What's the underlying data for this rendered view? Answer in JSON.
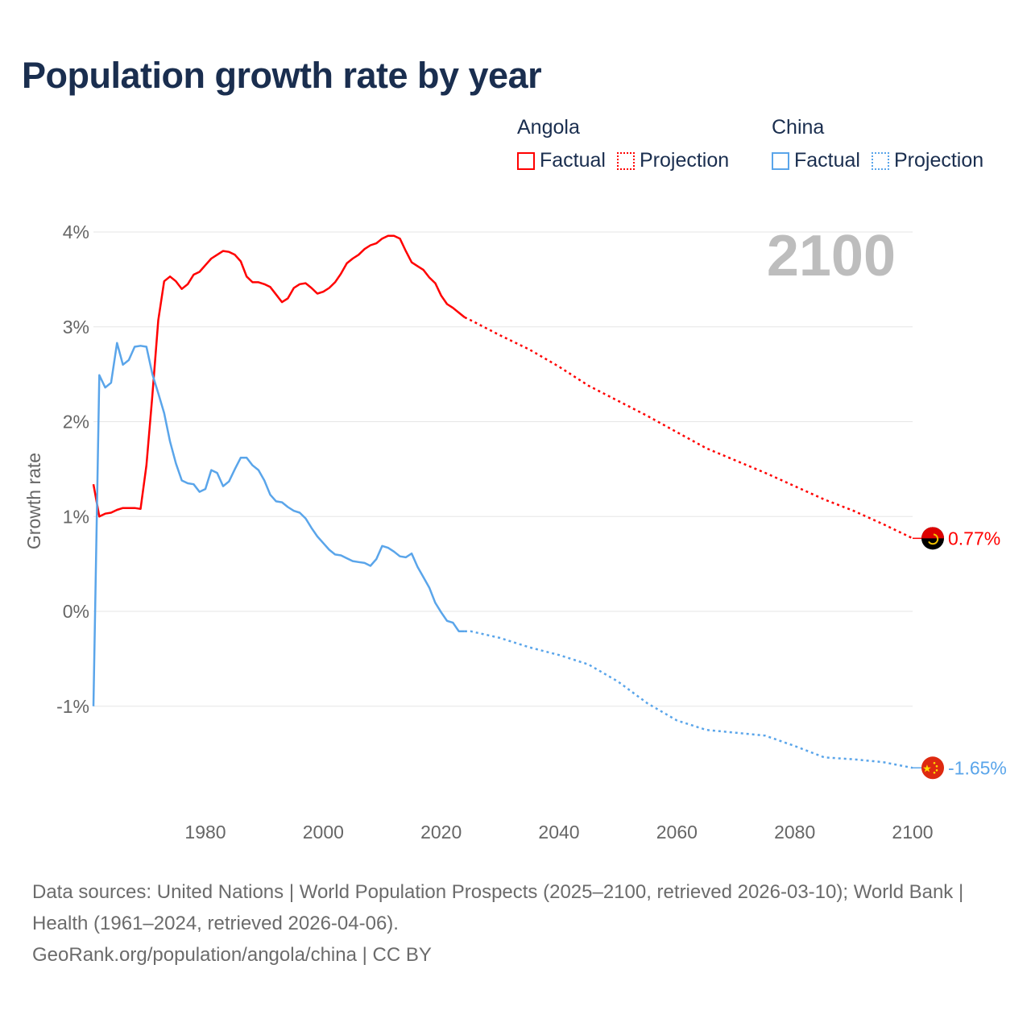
{
  "title": "Population growth rate by year",
  "legend": {
    "groups": [
      {
        "name": "Angola",
        "color": "#ff0000",
        "factual": "Factual",
        "projection": "Projection"
      },
      {
        "name": "China",
        "color": "#5aa5ea",
        "factual": "Factual",
        "projection": "Projection"
      }
    ]
  },
  "year_display": "2100",
  "footer": {
    "sources": "Data sources: United Nations | World Population Prospects (2025–2100, retrieved 2026-03-10); World Bank | Health (1961–2024, retrieved 2026-04-06).",
    "credit": "GeoRank.org/population/angola/china | CC BY"
  },
  "chart_data": {
    "type": "line",
    "title": "Population growth rate by year",
    "xlabel": "",
    "ylabel": "Growth rate",
    "xlim": [
      1961,
      2100
    ],
    "ylim": [
      -1.9,
      4.2
    ],
    "x_ticks": [
      1980,
      2000,
      2020,
      2040,
      2060,
      2080,
      2100
    ],
    "x_tick_labels": [
      "1980",
      "2000",
      "2020",
      "2040",
      "2060",
      "2080",
      "2100"
    ],
    "y_ticks": [
      4,
      3,
      2,
      1,
      0,
      -1
    ],
    "y_tick_labels": [
      "4%",
      "3%",
      "2%",
      "1%",
      "0%",
      "-1%"
    ],
    "grid": true,
    "legend_position": "top-right",
    "series": [
      {
        "name": "Angola",
        "color": "#ff0000",
        "end_label": "0.77%",
        "factual": {
          "x": [
            1961,
            1962,
            1963,
            1964,
            1965,
            1966,
            1967,
            1968,
            1969,
            1970,
            1971,
            1972,
            1973,
            1974,
            1975,
            1976,
            1977,
            1978,
            1979,
            1980,
            1981,
            1982,
            1983,
            1984,
            1985,
            1986,
            1987,
            1988,
            1989,
            1990,
            1991,
            1992,
            1993,
            1994,
            1995,
            1996,
            1997,
            1998,
            1999,
            2000,
            2001,
            2002,
            2003,
            2004,
            2005,
            2006,
            2007,
            2008,
            2009,
            2010,
            2011,
            2012,
            2013,
            2014,
            2015,
            2016,
            2017,
            2018,
            2019,
            2020,
            2021,
            2022,
            2023,
            2024
          ],
          "y": [
            1.34,
            1.0,
            1.03,
            1.04,
            1.07,
            1.09,
            1.09,
            1.09,
            1.08,
            1.54,
            2.28,
            3.07,
            3.48,
            3.53,
            3.48,
            3.4,
            3.45,
            3.55,
            3.58,
            3.65,
            3.72,
            3.76,
            3.8,
            3.79,
            3.76,
            3.69,
            3.53,
            3.47,
            3.47,
            3.45,
            3.42,
            3.34,
            3.26,
            3.3,
            3.41,
            3.45,
            3.46,
            3.41,
            3.35,
            3.37,
            3.41,
            3.47,
            3.56,
            3.67,
            3.72,
            3.76,
            3.82,
            3.86,
            3.88,
            3.93,
            3.96,
            3.96,
            3.93,
            3.8,
            3.68,
            3.64,
            3.6,
            3.52,
            3.46,
            3.33,
            3.24,
            3.2,
            3.15,
            3.1
          ]
        },
        "projection": {
          "x": [
            2024,
            2025,
            2030,
            2035,
            2040,
            2045,
            2050,
            2055,
            2060,
            2065,
            2070,
            2075,
            2080,
            2085,
            2090,
            2095,
            2100
          ],
          "y": [
            3.1,
            3.07,
            2.91,
            2.76,
            2.58,
            2.38,
            2.22,
            2.06,
            1.89,
            1.72,
            1.59,
            1.46,
            1.32,
            1.18,
            1.06,
            0.92,
            0.77
          ]
        }
      },
      {
        "name": "China",
        "color": "#5aa5ea",
        "end_label": "-1.65%",
        "factual": {
          "x": [
            1961,
            1962,
            1963,
            1964,
            1965,
            1966,
            1967,
            1968,
            1969,
            1970,
            1971,
            1972,
            1973,
            1974,
            1975,
            1976,
            1977,
            1978,
            1979,
            1980,
            1981,
            1982,
            1983,
            1984,
            1985,
            1986,
            1987,
            1988,
            1989,
            1990,
            1991,
            1992,
            1993,
            1994,
            1995,
            1996,
            1997,
            1998,
            1999,
            2000,
            2001,
            2002,
            2003,
            2004,
            2005,
            2006,
            2007,
            2008,
            2009,
            2010,
            2011,
            2012,
            2013,
            2014,
            2015,
            2016,
            2017,
            2018,
            2019,
            2020,
            2021,
            2022,
            2023,
            2024
          ],
          "y": [
            -1.0,
            2.49,
            2.36,
            2.41,
            2.83,
            2.6,
            2.65,
            2.79,
            2.8,
            2.79,
            2.5,
            2.3,
            2.09,
            1.79,
            1.56,
            1.38,
            1.35,
            1.34,
            1.26,
            1.29,
            1.49,
            1.46,
            1.32,
            1.37,
            1.5,
            1.62,
            1.62,
            1.54,
            1.49,
            1.38,
            1.23,
            1.16,
            1.15,
            1.1,
            1.06,
            1.04,
            0.98,
            0.88,
            0.79,
            0.72,
            0.65,
            0.6,
            0.59,
            0.56,
            0.53,
            0.52,
            0.51,
            0.48,
            0.55,
            0.69,
            0.67,
            0.63,
            0.58,
            0.57,
            0.61,
            0.47,
            0.36,
            0.25,
            0.09,
            -0.01,
            -0.1,
            -0.12,
            -0.21,
            -0.21
          ]
        },
        "projection": {
          "x": [
            2024,
            2025,
            2030,
            2035,
            2040,
            2045,
            2050,
            2055,
            2060,
            2065,
            2070,
            2075,
            2080,
            2085,
            2090,
            2095,
            2100
          ],
          "y": [
            -0.21,
            -0.21,
            -0.28,
            -0.38,
            -0.46,
            -0.56,
            -0.74,
            -0.97,
            -1.15,
            -1.25,
            -1.28,
            -1.31,
            -1.42,
            -1.54,
            -1.56,
            -1.59,
            -1.65
          ]
        }
      }
    ]
  }
}
